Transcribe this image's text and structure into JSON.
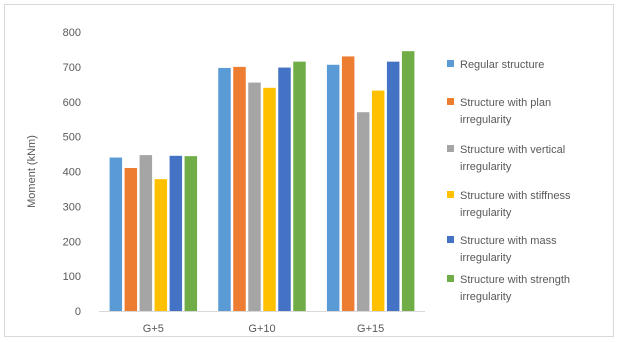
{
  "chart_data": {
    "type": "bar",
    "title": "",
    "xlabel": "",
    "ylabel": "Moment (kNm)",
    "ylim": [
      0,
      800
    ],
    "yticks": [
      "0",
      "100",
      "200",
      "300",
      "400",
      "500",
      "600",
      "700",
      "800"
    ],
    "grid": false,
    "legend_position": "right",
    "categories": [
      "G+5",
      "G+10",
      "G+15"
    ],
    "series": [
      {
        "name": "Regular structure",
        "legend_lines": [
          "Regular structure"
        ],
        "color": "#5B9BD5",
        "values": [
          440,
          697,
          706
        ]
      },
      {
        "name": "Structure with plan irregularity",
        "legend_lines": [
          "Structure with plan",
          "irregularity"
        ],
        "color": "#ED7D31",
        "values": [
          410,
          700,
          730
        ]
      },
      {
        "name": "Structure with vertical irregularity",
        "legend_lines": [
          "Structure with vertical",
          "irregularity"
        ],
        "color": "#A5A5A5",
        "values": [
          447,
          655,
          570
        ]
      },
      {
        "name": "Structure with stiffness irregularity",
        "legend_lines": [
          "Structure with stiffness",
          "irregularity"
        ],
        "color": "#FFC000",
        "values": [
          378,
          640,
          632
        ]
      },
      {
        "name": "Structure with mass irregularity",
        "legend_lines": [
          "Structure with mass",
          "irregularity"
        ],
        "color": "#4472C4",
        "values": [
          445,
          698,
          715
        ]
      },
      {
        "name": "Structure with strength irregularity",
        "legend_lines": [
          "Structure with strength",
          "irregularity"
        ],
        "color": "#70AD47",
        "values": [
          444,
          715,
          745
        ]
      }
    ]
  }
}
